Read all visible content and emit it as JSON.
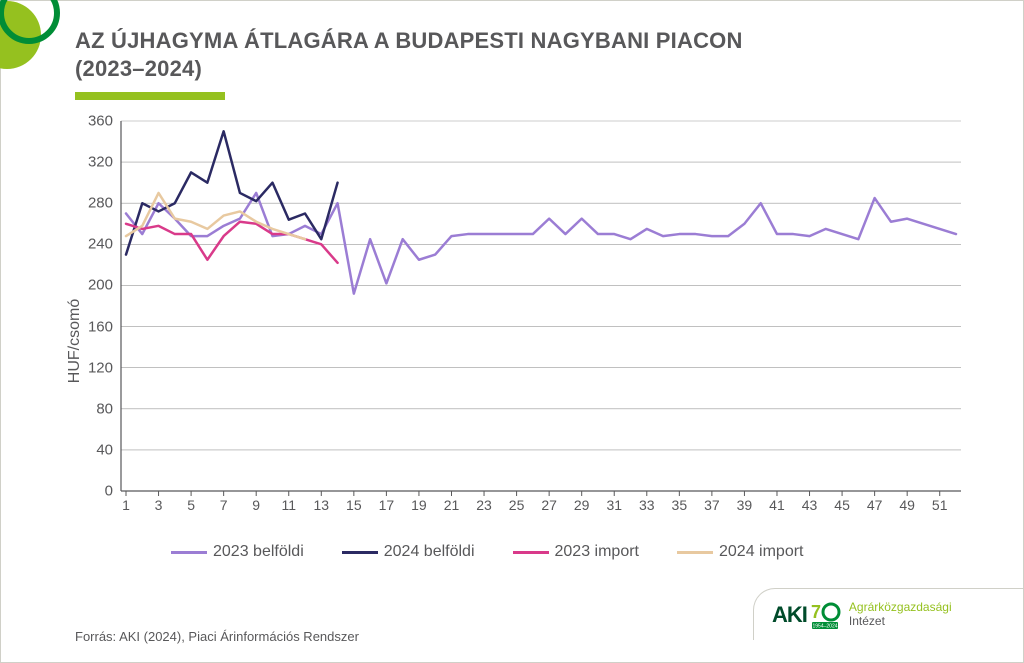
{
  "title_line1": "AZ ÚJHAGYMA ÁTLAGÁRA A BUDAPESTI NAGYBANI PIACON",
  "title_line2": "(2023–2024)",
  "y_axis_label": "HUF/csomó",
  "source_text": "Forrás: AKI (2024), Piaci Árinformációs Rendszer",
  "branding": {
    "aki": "AKI",
    "years": "1954–2024",
    "inst_l1": "Agrárközgazdasági",
    "inst_l2": "Intézet"
  },
  "chart": {
    "type": "line",
    "background": "#ffffff",
    "grid_color": "#9a9a9a",
    "grid_width": 0.6,
    "axis_color": "#58585a",
    "ylim": [
      0,
      360
    ],
    "ytick_step": 40,
    "yticks": [
      0,
      40,
      80,
      120,
      160,
      200,
      240,
      280,
      320,
      360
    ],
    "xlim": [
      1,
      52
    ],
    "xticks": [
      1,
      3,
      5,
      7,
      9,
      11,
      13,
      15,
      17,
      19,
      21,
      23,
      25,
      27,
      29,
      31,
      33,
      35,
      37,
      39,
      41,
      43,
      45,
      47,
      49,
      51
    ],
    "line_width": 2.5,
    "series": [
      {
        "id": "2023_belfoldi",
        "label": "2023 belföldi",
        "color": "#9b7dd4",
        "x": [
          1,
          2,
          3,
          4,
          5,
          6,
          7,
          8,
          9,
          10,
          11,
          12,
          13,
          14,
          15,
          16,
          17,
          18,
          19,
          20,
          21,
          22,
          23,
          24,
          25,
          26,
          27,
          28,
          29,
          30,
          31,
          32,
          33,
          34,
          35,
          36,
          37,
          38,
          39,
          40,
          41,
          42,
          43,
          44,
          45,
          46,
          47,
          48,
          49,
          50,
          51,
          52
        ],
        "y": [
          270,
          250,
          280,
          265,
          248,
          248,
          258,
          265,
          290,
          248,
          250,
          258,
          250,
          280,
          192,
          245,
          202,
          245,
          225,
          230,
          248,
          250,
          250,
          250,
          250,
          250,
          265,
          250,
          265,
          250,
          250,
          245,
          255,
          248,
          250,
          250,
          248,
          248,
          260,
          280,
          250,
          250,
          248,
          255,
          250,
          245,
          285,
          262,
          265,
          260,
          255,
          250
        ]
      },
      {
        "id": "2024_belfoldi",
        "label": "2024 belföldi",
        "color": "#2b2a63",
        "x": [
          1,
          2,
          3,
          4,
          5,
          6,
          7,
          8,
          9,
          10,
          11,
          12,
          13,
          14
        ],
        "y": [
          230,
          280,
          272,
          280,
          310,
          300,
          350,
          290,
          282,
          300,
          264,
          270,
          245,
          300
        ]
      },
      {
        "id": "2023_import",
        "label": "2023 import",
        "color": "#d93a8a",
        "x": [
          1,
          2,
          3,
          4,
          5,
          6,
          7,
          8,
          9,
          10,
          11,
          12,
          13,
          14
        ],
        "y": [
          260,
          255,
          258,
          250,
          250,
          225,
          248,
          262,
          260,
          250,
          250,
          245,
          240,
          222
        ]
      },
      {
        "id": "2024_import",
        "label": "2024 import",
        "color": "#e8c9a0",
        "x": [
          1,
          2,
          3,
          4,
          5,
          6,
          7,
          8,
          9,
          10,
          11,
          12
        ],
        "y": [
          248,
          258,
          290,
          265,
          262,
          255,
          268,
          272,
          262,
          255,
          250,
          245
        ]
      }
    ],
    "legend_order": [
      "2023_belfoldi",
      "2024_belfoldi",
      "2023_import",
      "2024_import"
    ]
  },
  "deco": {
    "circle_dark": "#008d36",
    "circle_light": "#95c11f"
  }
}
